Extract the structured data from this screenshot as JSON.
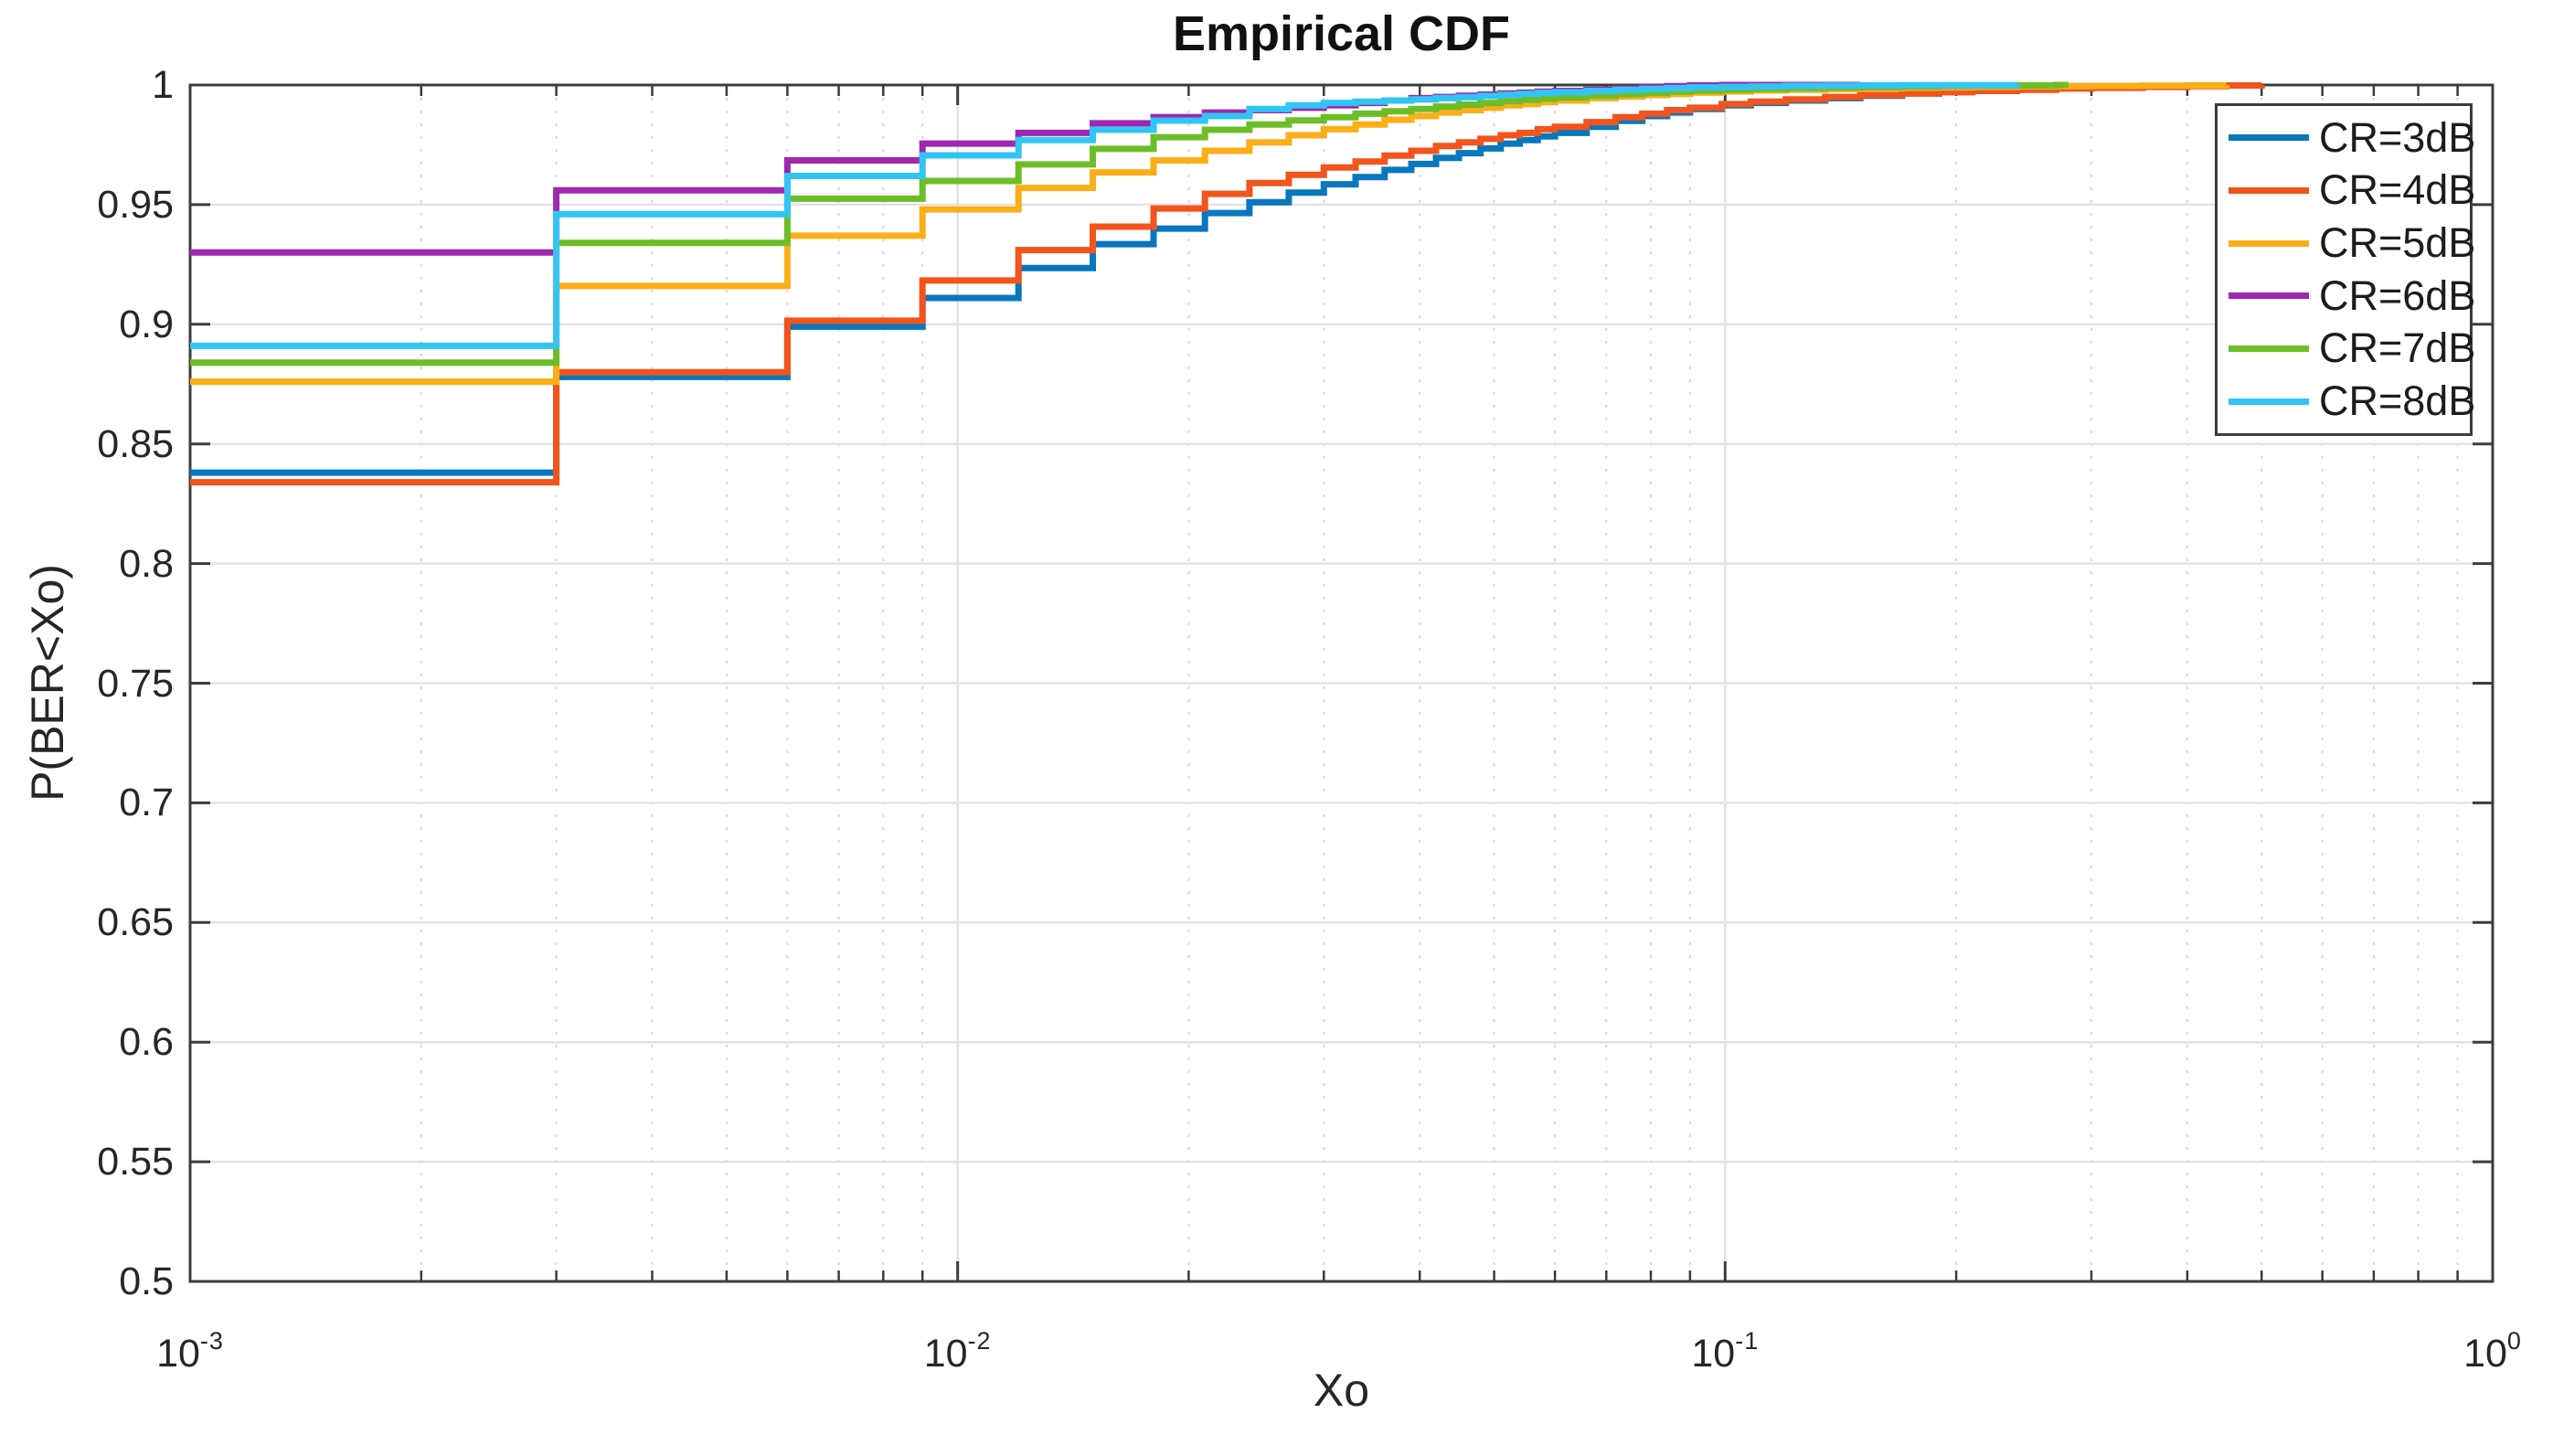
{
  "figure": {
    "title": "Empirical CDF",
    "x_axis_label": "Xo",
    "y_axis_label": "P(BER<Xo)",
    "background_color": "#ffffff",
    "axis_color": "#3c3c3c",
    "grid_major_color": "#e3e3e3",
    "grid_minor_color": "#d8d8d8"
  },
  "axes": {
    "x_scale": "log",
    "x_ticks": [
      {
        "mantissa": "10",
        "exponent": "-3",
        "value": 0.001
      },
      {
        "mantissa": "10",
        "exponent": "-2",
        "value": 0.01
      },
      {
        "mantissa": "10",
        "exponent": "-1",
        "value": 0.1
      },
      {
        "mantissa": "10",
        "exponent": "0",
        "value": 1
      }
    ],
    "x_minor_multipliers": [
      2,
      3,
      4,
      5,
      6,
      7,
      8,
      9
    ],
    "y_ticks": [
      {
        "label": "1",
        "value": 1.0
      },
      {
        "label": "0.95",
        "value": 0.95
      },
      {
        "label": "0.9",
        "value": 0.9
      },
      {
        "label": "0.85",
        "value": 0.85
      },
      {
        "label": "0.8",
        "value": 0.8
      },
      {
        "label": "0.75",
        "value": 0.75
      },
      {
        "label": "0.7",
        "value": 0.7
      },
      {
        "label": "0.65",
        "value": 0.65
      },
      {
        "label": "0.6",
        "value": 0.6
      },
      {
        "label": "0.55",
        "value": 0.55
      },
      {
        "label": "0.5",
        "value": 0.5
      }
    ]
  },
  "legend": {
    "position": "top-right"
  },
  "chart_data": {
    "type": "line",
    "subtype": "empirical-cdf-step",
    "title": "Empirical CDF",
    "xlabel": "Xo",
    "ylabel": "P(BER<Xo)",
    "x_scale": "log",
    "xlim": [
      0.001,
      1
    ],
    "ylim": [
      0.5,
      1
    ],
    "grid": true,
    "legend_position": "top-right",
    "step_x": [
      0.003,
      0.006,
      0.009,
      0.012,
      0.015,
      0.018,
      0.021,
      0.024,
      0.027,
      0.03,
      0.033,
      0.036,
      0.039,
      0.042,
      0.045,
      0.048,
      0.051,
      0.054,
      0.057,
      0.06,
      0.066,
      0.072,
      0.078,
      0.084,
      0.09,
      0.099,
      0.108,
      0.12,
      0.135,
      0.15,
      0.17,
      0.19,
      0.21,
      0.24,
      0.27,
      0.3,
      0.35,
      0.4,
      0.45,
      0.5
    ],
    "series": [
      {
        "name": "CR=3dB",
        "color": "#0877bd",
        "start_x": 0.001,
        "start_y": 0.838,
        "end_x": 0.3,
        "values": [
          0.878,
          0.899,
          0.911,
          0.9235,
          0.9335,
          0.94,
          0.9465,
          0.951,
          0.955,
          0.9585,
          0.9615,
          0.9645,
          0.967,
          0.9695,
          0.9715,
          0.9735,
          0.9755,
          0.977,
          0.9785,
          0.98,
          0.9825,
          0.985,
          0.987,
          0.9885,
          0.99,
          0.9915,
          0.9925,
          0.9935,
          0.9945,
          0.9955,
          0.9965,
          0.9975,
          0.9983,
          0.999,
          0.9995,
          1.0
        ]
      },
      {
        "name": "CR=4dB",
        "color": "#f2541b",
        "start_x": 0.001,
        "start_y": 0.834,
        "end_x": 0.5,
        "values": [
          0.88,
          0.9015,
          0.9183,
          0.931,
          0.9408,
          0.9484,
          0.9545,
          0.959,
          0.9625,
          0.9655,
          0.968,
          0.9705,
          0.9725,
          0.9745,
          0.976,
          0.9775,
          0.979,
          0.98,
          0.9815,
          0.9825,
          0.9845,
          0.9865,
          0.988,
          0.9895,
          0.9905,
          0.992,
          0.993,
          0.994,
          0.995,
          0.9958,
          0.9965,
          0.997,
          0.9975,
          0.998,
          0.9985,
          0.9988,
          0.9992,
          0.9995,
          0.9998,
          1.0
        ]
      },
      {
        "name": "CR=5dB",
        "color": "#fbae17",
        "start_x": 0.001,
        "start_y": 0.876,
        "end_x": 0.45,
        "values": [
          0.916,
          0.937,
          0.948,
          0.957,
          0.9635,
          0.9685,
          0.9725,
          0.976,
          0.979,
          0.9815,
          0.9835,
          0.9855,
          0.987,
          0.9885,
          0.9895,
          0.9905,
          0.9915,
          0.992,
          0.9928,
          0.9935,
          0.9945,
          0.9952,
          0.9958,
          0.9963,
          0.9968,
          0.9973,
          0.9977,
          0.998,
          0.9983,
          0.9986,
          0.9988,
          0.999,
          0.9992,
          0.9994,
          0.9995,
          0.9996,
          0.9997,
          0.9998,
          1.0
        ]
      },
      {
        "name": "CR=6dB",
        "color": "#9e28ae",
        "start_x": 0.001,
        "start_y": 0.93,
        "end_x": 0.15,
        "values": [
          0.956,
          0.9685,
          0.9755,
          0.98,
          0.984,
          0.9866,
          0.9885,
          0.9895,
          0.9905,
          0.9915,
          0.9925,
          0.9935,
          0.9945,
          0.995,
          0.9955,
          0.996,
          0.9965,
          0.9968,
          0.9972,
          0.9975,
          0.998,
          0.9985,
          0.999,
          0.9995,
          0.9998,
          1.0
        ]
      },
      {
        "name": "CR=7dB",
        "color": "#6dbd28",
        "start_x": 0.001,
        "start_y": 0.884,
        "end_x": 0.28,
        "values": [
          0.934,
          0.9525,
          0.9599,
          0.9668,
          0.9733,
          0.9782,
          0.9813,
          0.9835,
          0.9852,
          0.9865,
          0.988,
          0.989,
          0.99,
          0.991,
          0.9918,
          0.9925,
          0.9932,
          0.9938,
          0.9943,
          0.9948,
          0.9955,
          0.9962,
          0.9967,
          0.9972,
          0.9976,
          0.998,
          0.9984,
          0.9987,
          0.999,
          0.9992,
          0.9994,
          0.9996,
          0.9997,
          0.9998,
          1.0
        ]
      },
      {
        "name": "CR=8dB",
        "color": "#32c5f4",
        "start_x": 0.001,
        "start_y": 0.891,
        "end_x": 0.24,
        "values": [
          0.946,
          0.962,
          0.9706,
          0.977,
          0.9813,
          0.9851,
          0.987,
          0.99,
          0.9915,
          0.9925,
          0.993,
          0.9935,
          0.994,
          0.9945,
          0.9949,
          0.9954,
          0.9959,
          0.9963,
          0.9967,
          0.997,
          0.9975,
          0.998,
          0.9984,
          0.9987,
          0.999,
          0.9992,
          0.9994,
          0.9996,
          0.9997,
          0.9998,
          0.9999,
          0.9999,
          0.9999,
          1.0
        ]
      }
    ]
  }
}
